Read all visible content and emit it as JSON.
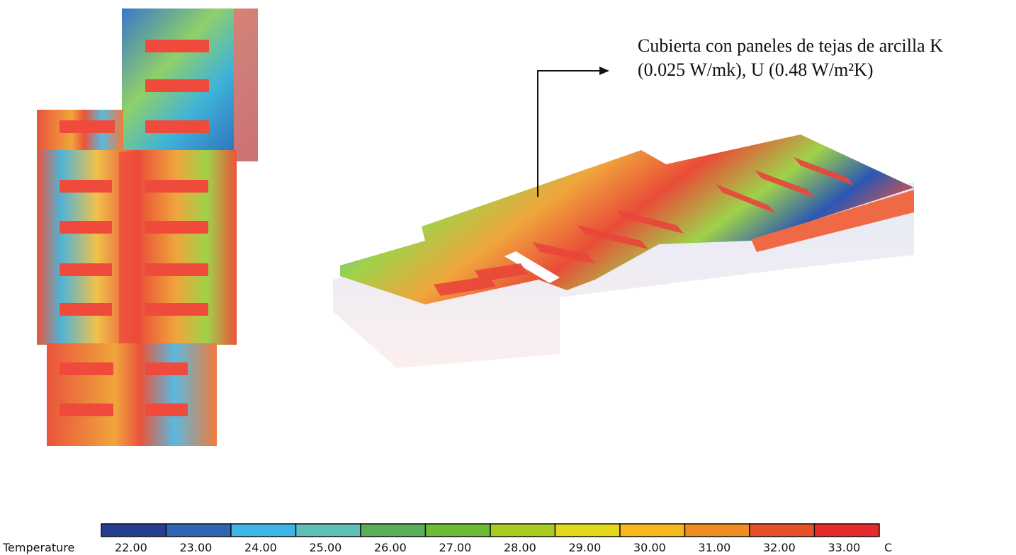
{
  "annotation": {
    "line1": "Cubierta con paneles de tejas de arcilla K",
    "line2": "(0.025 W/mk), U (0.48 W/m²K)"
  },
  "legend": {
    "title": "Temperature",
    "unit": "C",
    "values": [
      "22.00",
      "23.00",
      "24.00",
      "25.00",
      "26.00",
      "27.00",
      "28.00",
      "29.00",
      "30.00",
      "31.00",
      "32.00",
      "33.00"
    ],
    "colors": [
      "#243f8f",
      "#2f66b4",
      "#3bb6e6",
      "#5dbfb6",
      "#5aae55",
      "#6cbc33",
      "#a8cb1f",
      "#e3d81a",
      "#f5b91c",
      "#ef8d20",
      "#e8502a",
      "#e52b2b"
    ]
  },
  "colors": {
    "hot": "#ea4f3b",
    "warm": "#f3a23a",
    "mid": "#9fd24a",
    "cool": "#3fb3d8",
    "cold": "#2b57b3"
  }
}
